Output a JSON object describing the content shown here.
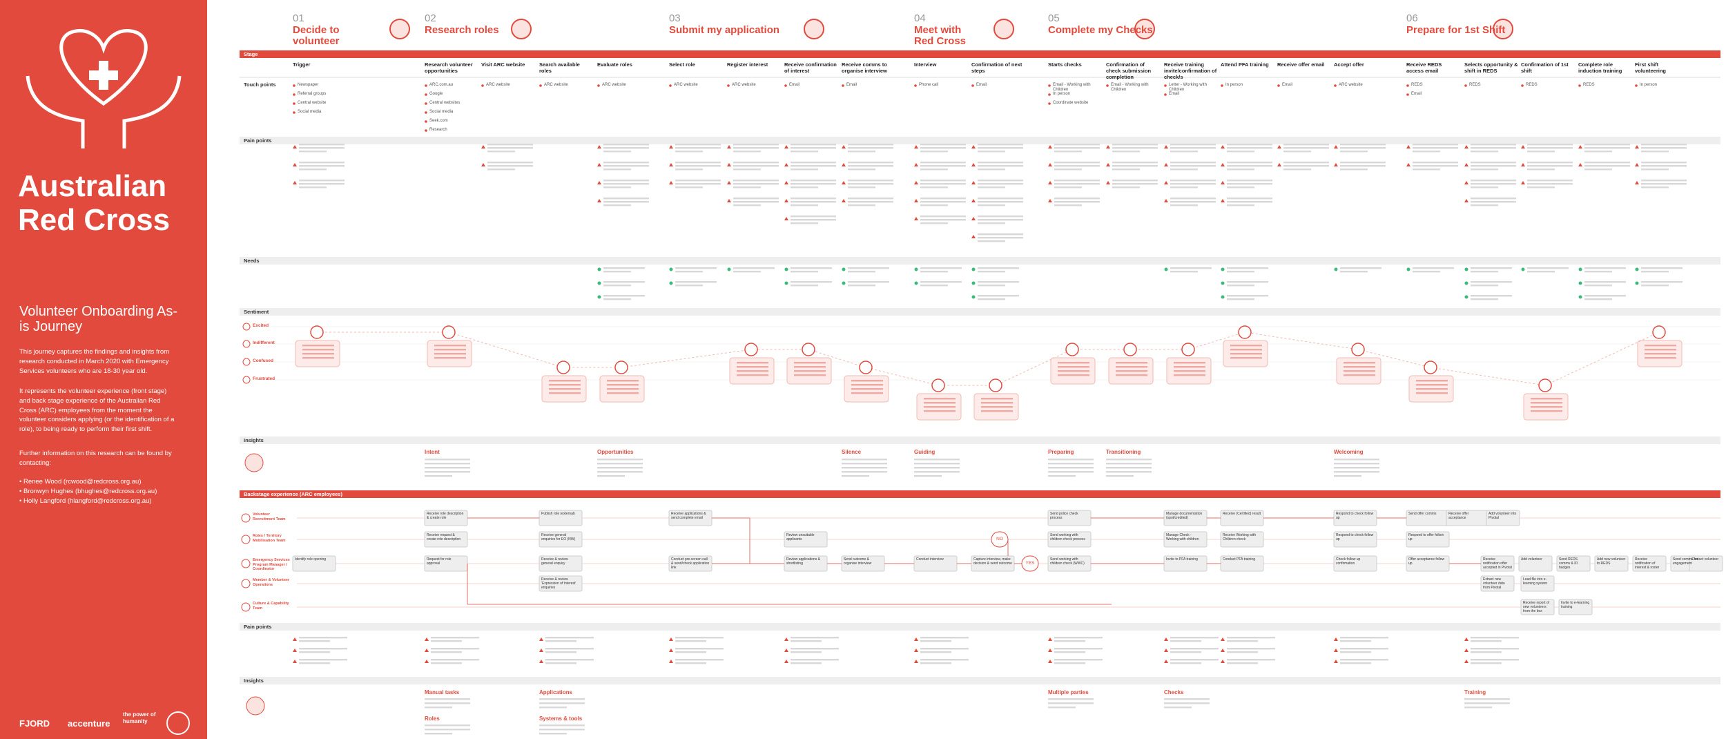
{
  "sidebar": {
    "title": "Australian Red Cross",
    "subtitle": "Volunteer Onboarding As-is Journey",
    "paragraphs": [
      "This journey captures the findings and insights from research conducted in March 2020 with Emergency Services volunteers who are 18-30 year old.",
      "It represents the volunteer experience (front stage) and back stage experience of the Australian Red Cross (ARC) employees from the moment the volunteer considers applying (or the identification of a role), to being ready to perform their first shift.",
      "Further information on this research can be found by contacting:"
    ],
    "contacts": [
      "• Renee Wood (rcwood@redcross.org.au)",
      "• Bronwyn Hughes (bhughes@redcross.org.au)",
      "• Holly Langford (hlangford@redcross.org.au)"
    ],
    "logos": [
      "FJORD",
      "accenture",
      "the power of humanity"
    ]
  },
  "stages": [
    {
      "number": "01",
      "name": "Decide to volunteer"
    },
    {
      "number": "02",
      "name": "Research roles"
    },
    {
      "number": "03",
      "name": "Submit my application"
    },
    {
      "number": "04",
      "name": "Meet with Red Cross"
    },
    {
      "number": "05",
      "name": "Complete my Checks"
    },
    {
      "number": "06",
      "name": "Prepare for 1st Shift"
    }
  ],
  "sections": {
    "stage": "Stage",
    "touch_points": "Touch points",
    "pain_points": "Pain points",
    "needs": "Needs",
    "sentiment": "Sentiment",
    "insights": "Insights",
    "backstage": "Backstage experience (ARC employees)",
    "backstage_pain_points": "Pain points",
    "backstage_insights": "Insights"
  },
  "sentiment_levels": [
    "Excited",
    "Indifferent",
    "Confused",
    "Frustrated"
  ],
  "steps": [
    {
      "name": "Trigger",
      "touch_points": [
        "Newspaper",
        "Referral groups",
        "Central website",
        "Social media"
      ],
      "sentiment": "Excited"
    },
    {
      "name": "Research volunteer opportunities",
      "touch_points": [
        "ARC.com.au",
        "Google",
        "Central websites",
        "Social media",
        "Seek.com",
        "Research"
      ],
      "sentiment": "Excited"
    },
    {
      "name": "Visit ARC website",
      "touch_points": [
        "ARC website"
      ],
      "sentiment": null
    },
    {
      "name": "Search available roles",
      "touch_points": [
        "ARC website"
      ],
      "sentiment": "Confused"
    },
    {
      "name": "Evaluate roles",
      "touch_points": [
        "ARC website"
      ],
      "sentiment": "Confused"
    },
    {
      "name": "Select role",
      "touch_points": [
        "ARC website"
      ],
      "sentiment": null
    },
    {
      "name": "Register interest",
      "touch_points": [
        "ARC website"
      ],
      "sentiment": "Indifferent"
    },
    {
      "name": "Receive confirmation of interest",
      "touch_points": [
        "Email"
      ],
      "sentiment": "Indifferent"
    },
    {
      "name": "Receive comms to organise interview",
      "touch_points": [
        "Email"
      ],
      "sentiment": "Confused"
    },
    {
      "name": "Interview",
      "touch_points": [
        "Phone call"
      ],
      "sentiment": "Frustrated"
    },
    {
      "name": "Confirmation of next steps",
      "touch_points": [
        "Email"
      ],
      "sentiment": "Frustrated"
    },
    {
      "name": "Starts checks",
      "touch_points": [
        "Email - Working with Children",
        "In person",
        "Coordinate website"
      ],
      "sentiment": "Indifferent"
    },
    {
      "name": "Confirmation of check submission completion",
      "touch_points": [
        "Email - Working with Children"
      ],
      "sentiment": "Indifferent"
    },
    {
      "name": "Receive training invite/confirmation of check/s",
      "touch_points": [
        "Letter - Working with Children",
        "Email"
      ],
      "sentiment": "Indifferent"
    },
    {
      "name": "Attend PFA training",
      "touch_points": [
        "In person"
      ],
      "sentiment": "Excited"
    },
    {
      "name": "Receive offer email",
      "touch_points": [
        "Email"
      ],
      "sentiment": null
    },
    {
      "name": "Accept offer",
      "touch_points": [
        "ARC website"
      ],
      "sentiment": "Indifferent"
    },
    {
      "name": "Receive REDS access email",
      "touch_points": [
        "REDS",
        "Email"
      ],
      "sentiment": "Confused"
    },
    {
      "name": "Selects opportunity & shift in REDS",
      "touch_points": [
        "REDS"
      ],
      "sentiment": null
    },
    {
      "name": "Confirmation of 1st shift",
      "touch_points": [
        "REDS"
      ],
      "sentiment": "Frustrated"
    },
    {
      "name": "Complete role induction training",
      "touch_points": [
        "REDS"
      ],
      "sentiment": null
    },
    {
      "name": "First shift volunteering",
      "touch_points": [
        "In person"
      ],
      "sentiment": "Excited"
    }
  ],
  "insights": [
    "Intent",
    "Opportunities",
    "Silence",
    "Guiding",
    "Preparing",
    "Transitioning",
    "Welcoming"
  ],
  "lanes": [
    {
      "name": "Volunteer Recruitment Team",
      "boxes": [
        "Receive role description & create role",
        "Publish role (external)",
        "Receive applications & send complete email",
        "Send police check process",
        "Manage documentation (spot/credited)",
        "Receive (Certified) result",
        "Respond to check follow up",
        "Send offer comms",
        "Receive offer acceptance",
        "Add volunteer into Pivotal"
      ]
    },
    {
      "name": "Roles / Territory Mobilisation Team",
      "boxes": [
        "Receive request & create role description",
        "Receive general enquiries for EO (NW)",
        "Review unsuitable applicants",
        "NO",
        "Send working with children check process",
        "Manage Check - Working with children",
        "Receive Working with Children check",
        "Respond to check follow up",
        "Respond to offer follow up"
      ]
    },
    {
      "name": "Emergency Services Program Manager / Coordinator",
      "boxes": [
        "Identify role opening",
        "Request for role approval",
        "Receive & review general enquiry",
        "Conduct pre-screen call & send/check application link",
        "Review applications & shortlisting",
        "Send outcome & organise interview",
        "Conduct interview",
        "Capture interview, make decision & send outcome",
        "YES",
        "Send working with children check (WWC)",
        "Invite to PFA training",
        "Conduct PFA training",
        "Check follow up confirmation",
        "Offer acceptance follow up",
        "Receive notification offer accepted in Pivotal",
        "Add volunteer",
        "Send REDS comms & ID badges",
        "Add new volunteer to REDS",
        "Receive notification of interest & roster",
        "Send comms for engagement",
        "Contact volunteer"
      ]
    },
    {
      "name": "Member & Volunteer Operations",
      "boxes": [
        "Receive & review 'Expression of Interest' enquiries",
        "Extract new volunteer data from Pivotal",
        "Load file into e-learning system"
      ]
    },
    {
      "name": "Culture & Capability Team",
      "boxes": [
        "Receive report of new volunteers from the box",
        "Invite to e-learning training"
      ]
    }
  ],
  "backstage_insights": [
    "Manual tasks",
    "Roles",
    "Applications",
    "Systems & tools",
    "Multiple parties",
    "Checks",
    "Training"
  ]
}
